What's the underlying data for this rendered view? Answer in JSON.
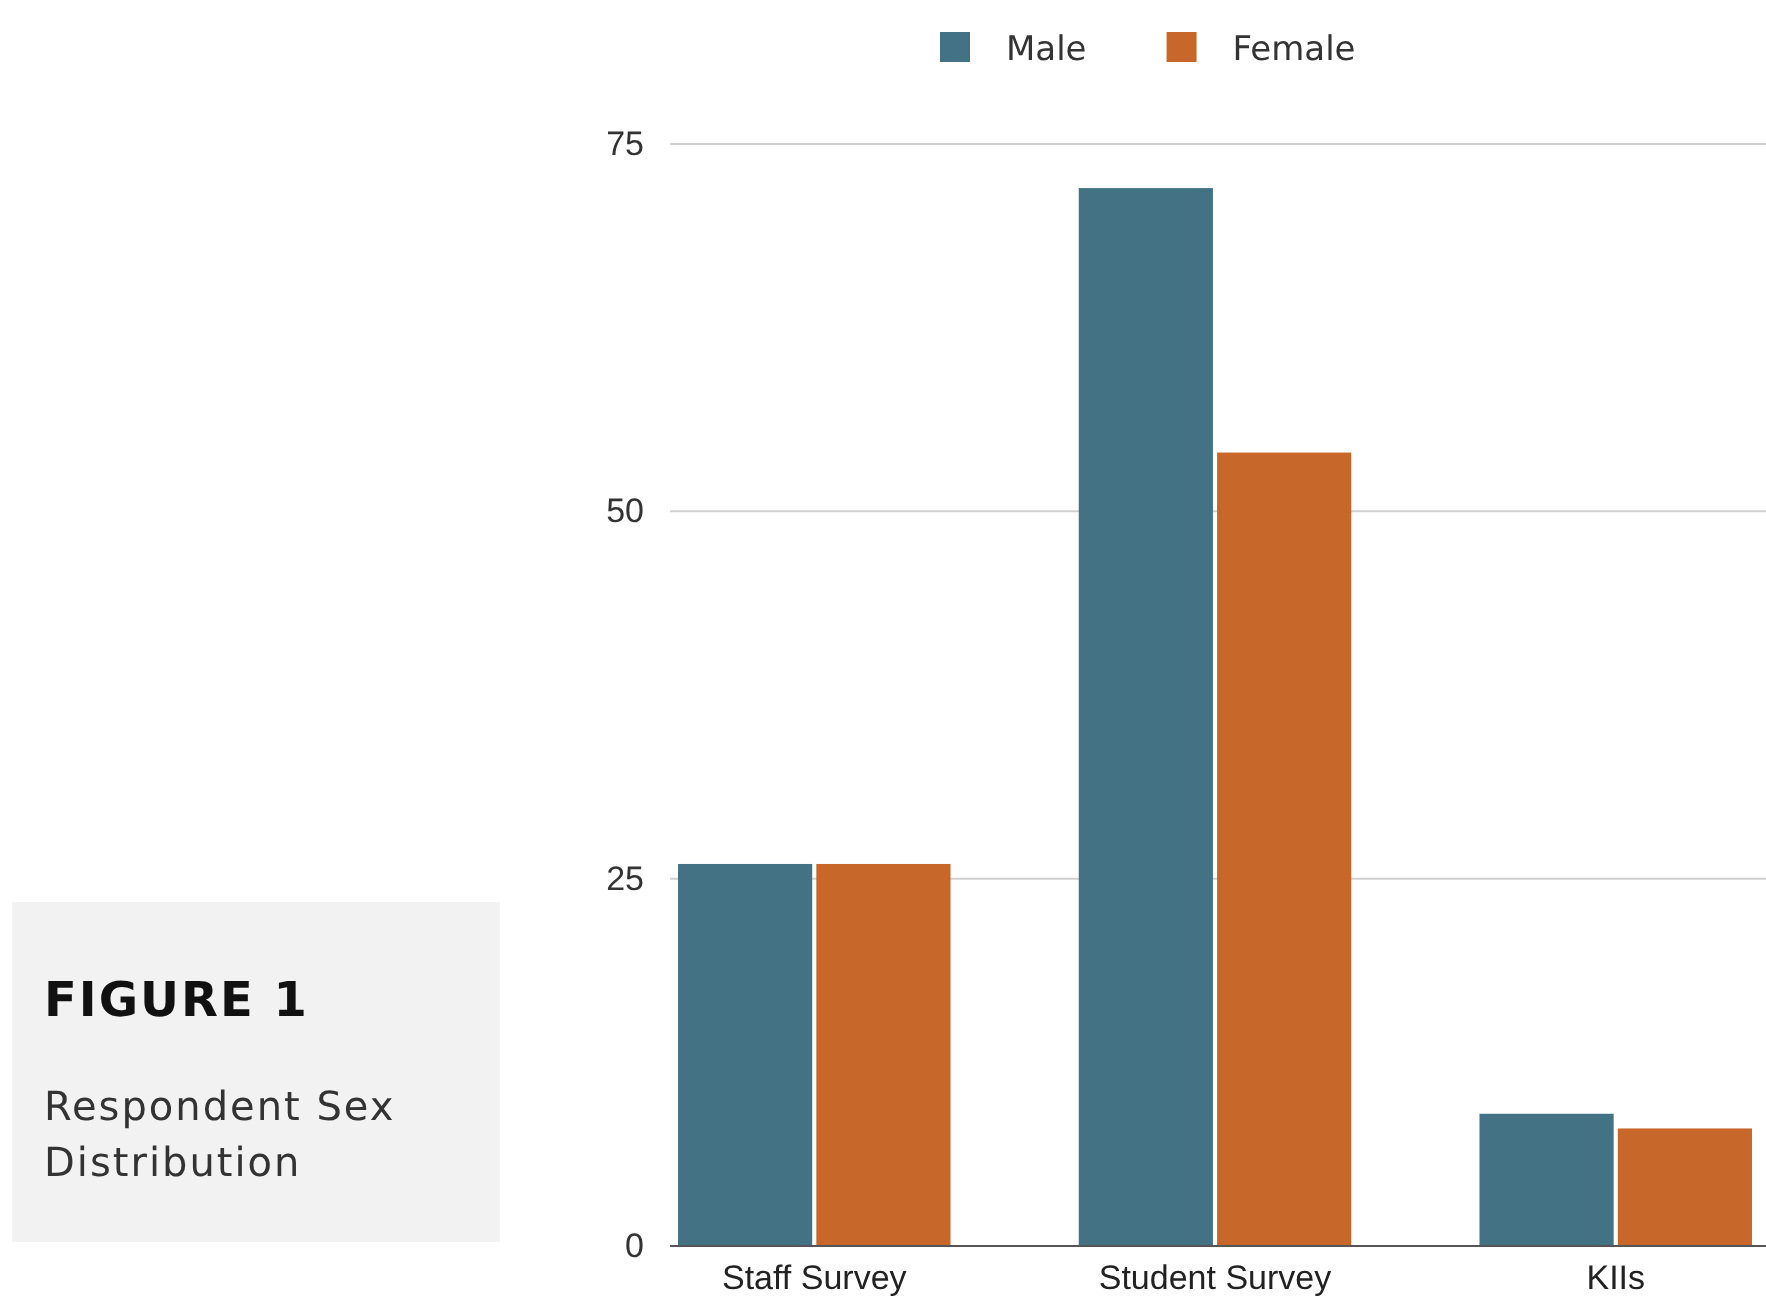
{
  "chart_data": {
    "type": "bar",
    "title": "FIGURE 1",
    "subtitle": "Respondent Sex Distribution",
    "categories": [
      "Staff Survey",
      "Student Survey",
      "KIIs"
    ],
    "series": [
      {
        "name": "Male",
        "color": "#427284",
        "values": [
          26,
          72,
          9
        ]
      },
      {
        "name": "Female",
        "color": "#c8672a",
        "values": [
          26,
          54,
          8
        ]
      }
    ],
    "ylim": [
      0,
      75
    ],
    "yticks": [
      0,
      25,
      50,
      75
    ],
    "grid": "y",
    "legend": "top"
  }
}
